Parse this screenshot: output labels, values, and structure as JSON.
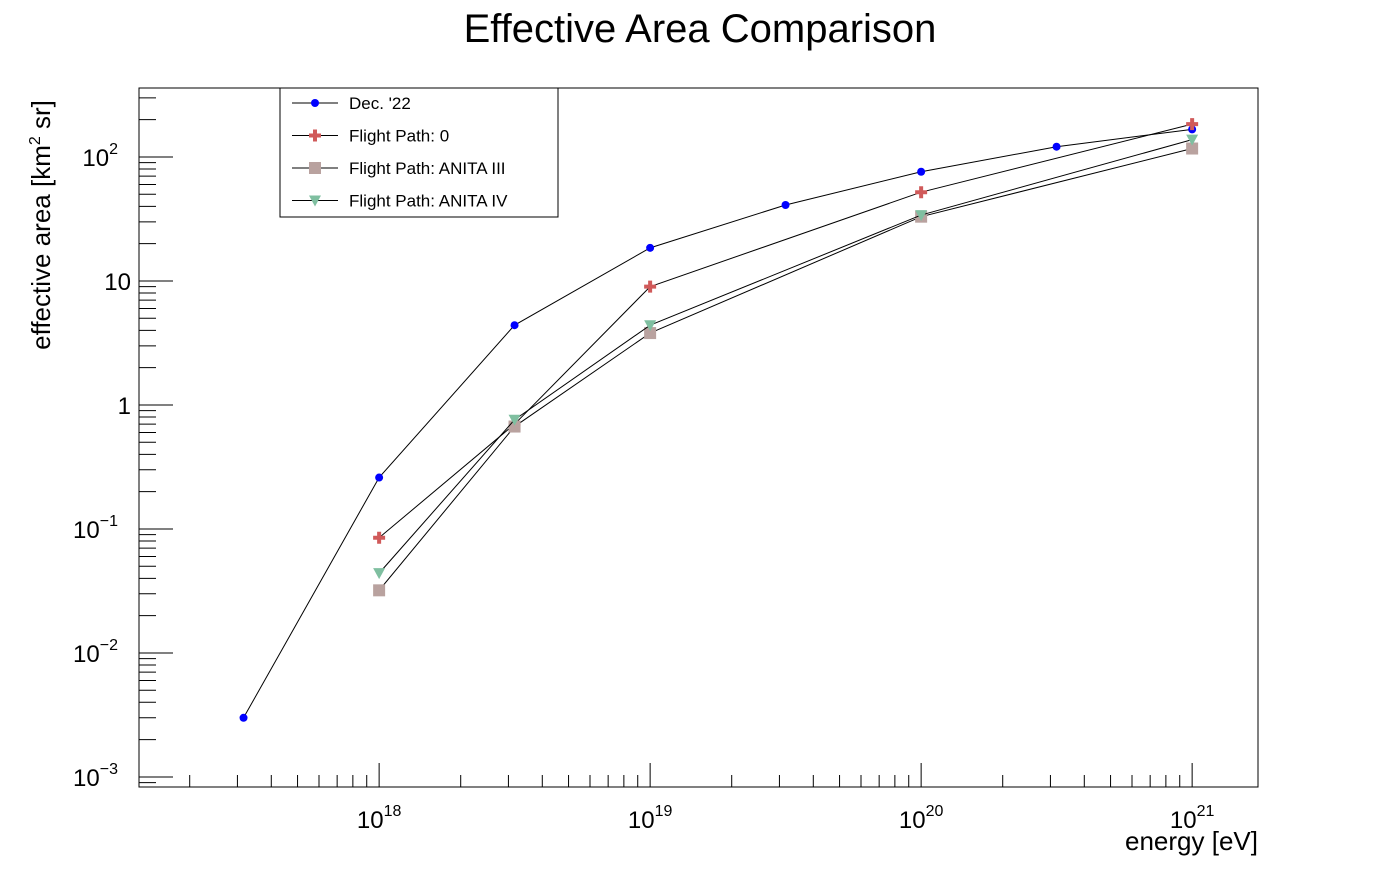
{
  "chart_data": {
    "type": "line",
    "title": "Effective Area Comparison",
    "xlabel": "energy [eV]",
    "ylabel": {
      "pre": "effective area [km",
      "sup": "2",
      "post": " sr]"
    },
    "xscale": "log",
    "yscale": "log",
    "xlim": [
      1.3e+17,
      1.75e+21
    ],
    "ylim": [
      0.00083,
      360.0
    ],
    "x_ticks": [
      {
        "value": 1e+18,
        "base": "10",
        "exp": "18"
      },
      {
        "value": 1e+19,
        "base": "10",
        "exp": "19"
      },
      {
        "value": 1e+20,
        "base": "10",
        "exp": "20"
      },
      {
        "value": 1e+21,
        "base": "10",
        "exp": "21"
      }
    ],
    "y_ticks": [
      {
        "value": 0.001,
        "base": "10",
        "exp": "−3"
      },
      {
        "value": 0.01,
        "base": "10",
        "exp": "−2"
      },
      {
        "value": 0.1,
        "base": "10",
        "exp": "−1"
      },
      {
        "value": 1,
        "base": "1",
        "exp": ""
      },
      {
        "value": 10,
        "base": "10",
        "exp": ""
      },
      {
        "value": 100,
        "base": "10",
        "exp": "2"
      }
    ],
    "grid": false,
    "legend_position": "top-left",
    "series": [
      {
        "name": "Dec. '22",
        "marker": "circle",
        "color": "#0000ff",
        "x": [
          3.16e+17,
          1e+18,
          3.16e+18,
          1e+19,
          3.16e+19,
          1e+20,
          3.16e+20,
          1e+21
        ],
        "y": [
          0.003,
          0.26,
          4.4,
          18.5,
          41,
          76,
          121,
          167
        ]
      },
      {
        "name": "Flight Path: 0",
        "marker": "plus",
        "color": "#d05a5a",
        "x": [
          1e+18,
          3.16e+18,
          1e+19,
          1e+20,
          1e+21
        ],
        "y": [
          0.085,
          0.7,
          9.0,
          52,
          184
        ]
      },
      {
        "name": "Flight Path: ANITA III",
        "marker": "square",
        "color": "#b9a29f",
        "x": [
          1e+18,
          3.16e+18,
          1e+19,
          1e+20,
          1e+21
        ],
        "y": [
          0.032,
          0.67,
          3.8,
          33,
          117
        ]
      },
      {
        "name": "Flight Path: ANITA IV",
        "marker": "triangle-down",
        "color": "#7fbfa0",
        "x": [
          1e+18,
          3.16e+18,
          1e+19,
          1e+20,
          1e+21
        ],
        "y": [
          0.044,
          0.76,
          4.4,
          34,
          138
        ]
      }
    ]
  }
}
